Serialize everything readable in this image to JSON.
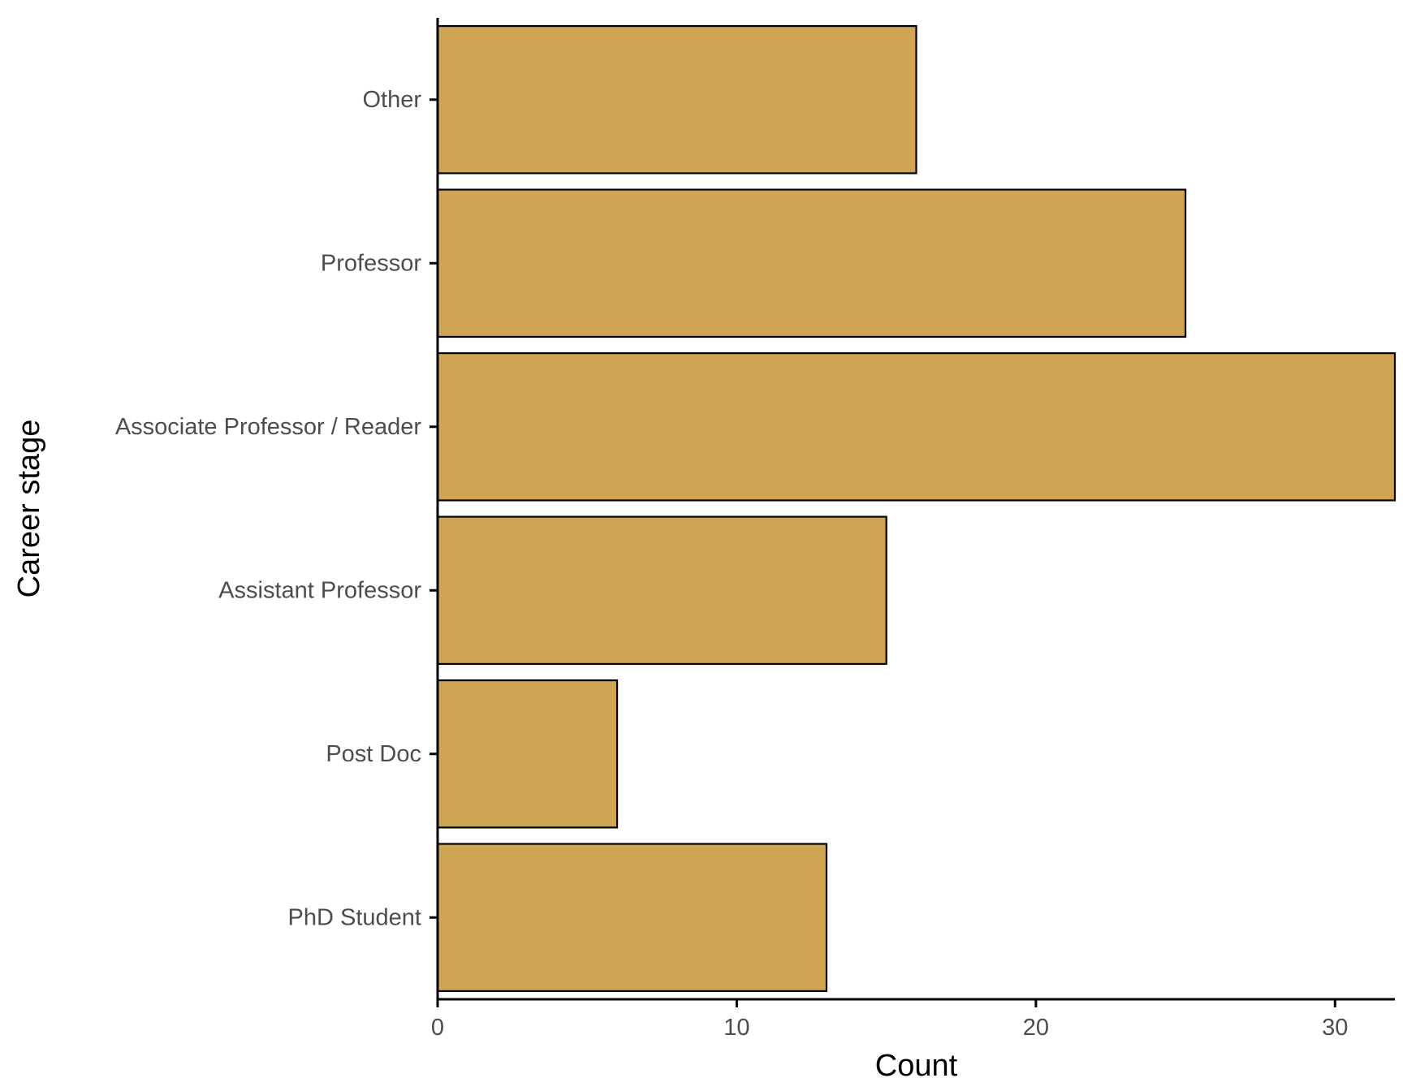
{
  "chart_data": {
    "type": "bar",
    "orientation": "horizontal",
    "categories": [
      "PhD Student",
      "Post Doc",
      "Assistant Professor",
      "Associate Professor / Reader",
      "Professor",
      "Other"
    ],
    "values": [
      13,
      6,
      15,
      32,
      25,
      16
    ],
    "xlabel": "Count",
    "ylabel": "Career stage",
    "x_ticks": [
      0,
      10,
      20,
      30
    ],
    "xlim": [
      0,
      32
    ],
    "grid": false,
    "legend": "none",
    "bar_fill": "#CFA553",
    "bar_outline": "#000000"
  }
}
